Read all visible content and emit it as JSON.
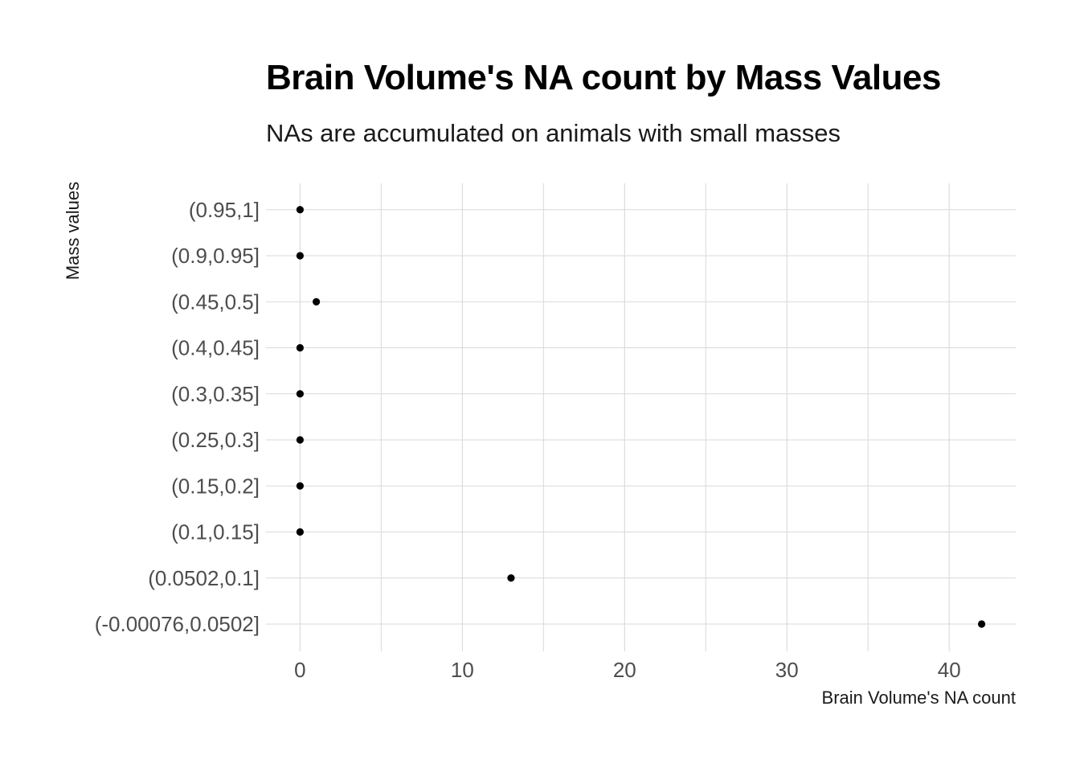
{
  "chart_data": {
    "type": "scatter",
    "title": "Brain Volume's NA count by Mass Values",
    "subtitle": "NAs are accumulated on animals with small masses",
    "xlabel": "Brain Volume's NA count",
    "ylabel": "Mass values",
    "categories": [
      "(-0.00076,0.0502]",
      "(0.0502,0.1]",
      "(0.1,0.15]",
      "(0.15,0.2]",
      "(0.25,0.3]",
      "(0.3,0.35]",
      "(0.4,0.45]",
      "(0.45,0.5]",
      "(0.9,0.95]",
      "(0.95,1]"
    ],
    "values": [
      42,
      13,
      0,
      0,
      0,
      0,
      0,
      1,
      0,
      0
    ],
    "xlim": [
      -2.1,
      44.1
    ],
    "x_ticks": [
      0,
      10,
      20,
      30,
      40
    ],
    "grid": true,
    "legend": "none",
    "point_color": "#000000",
    "grid_color": "#d9d9d9"
  }
}
